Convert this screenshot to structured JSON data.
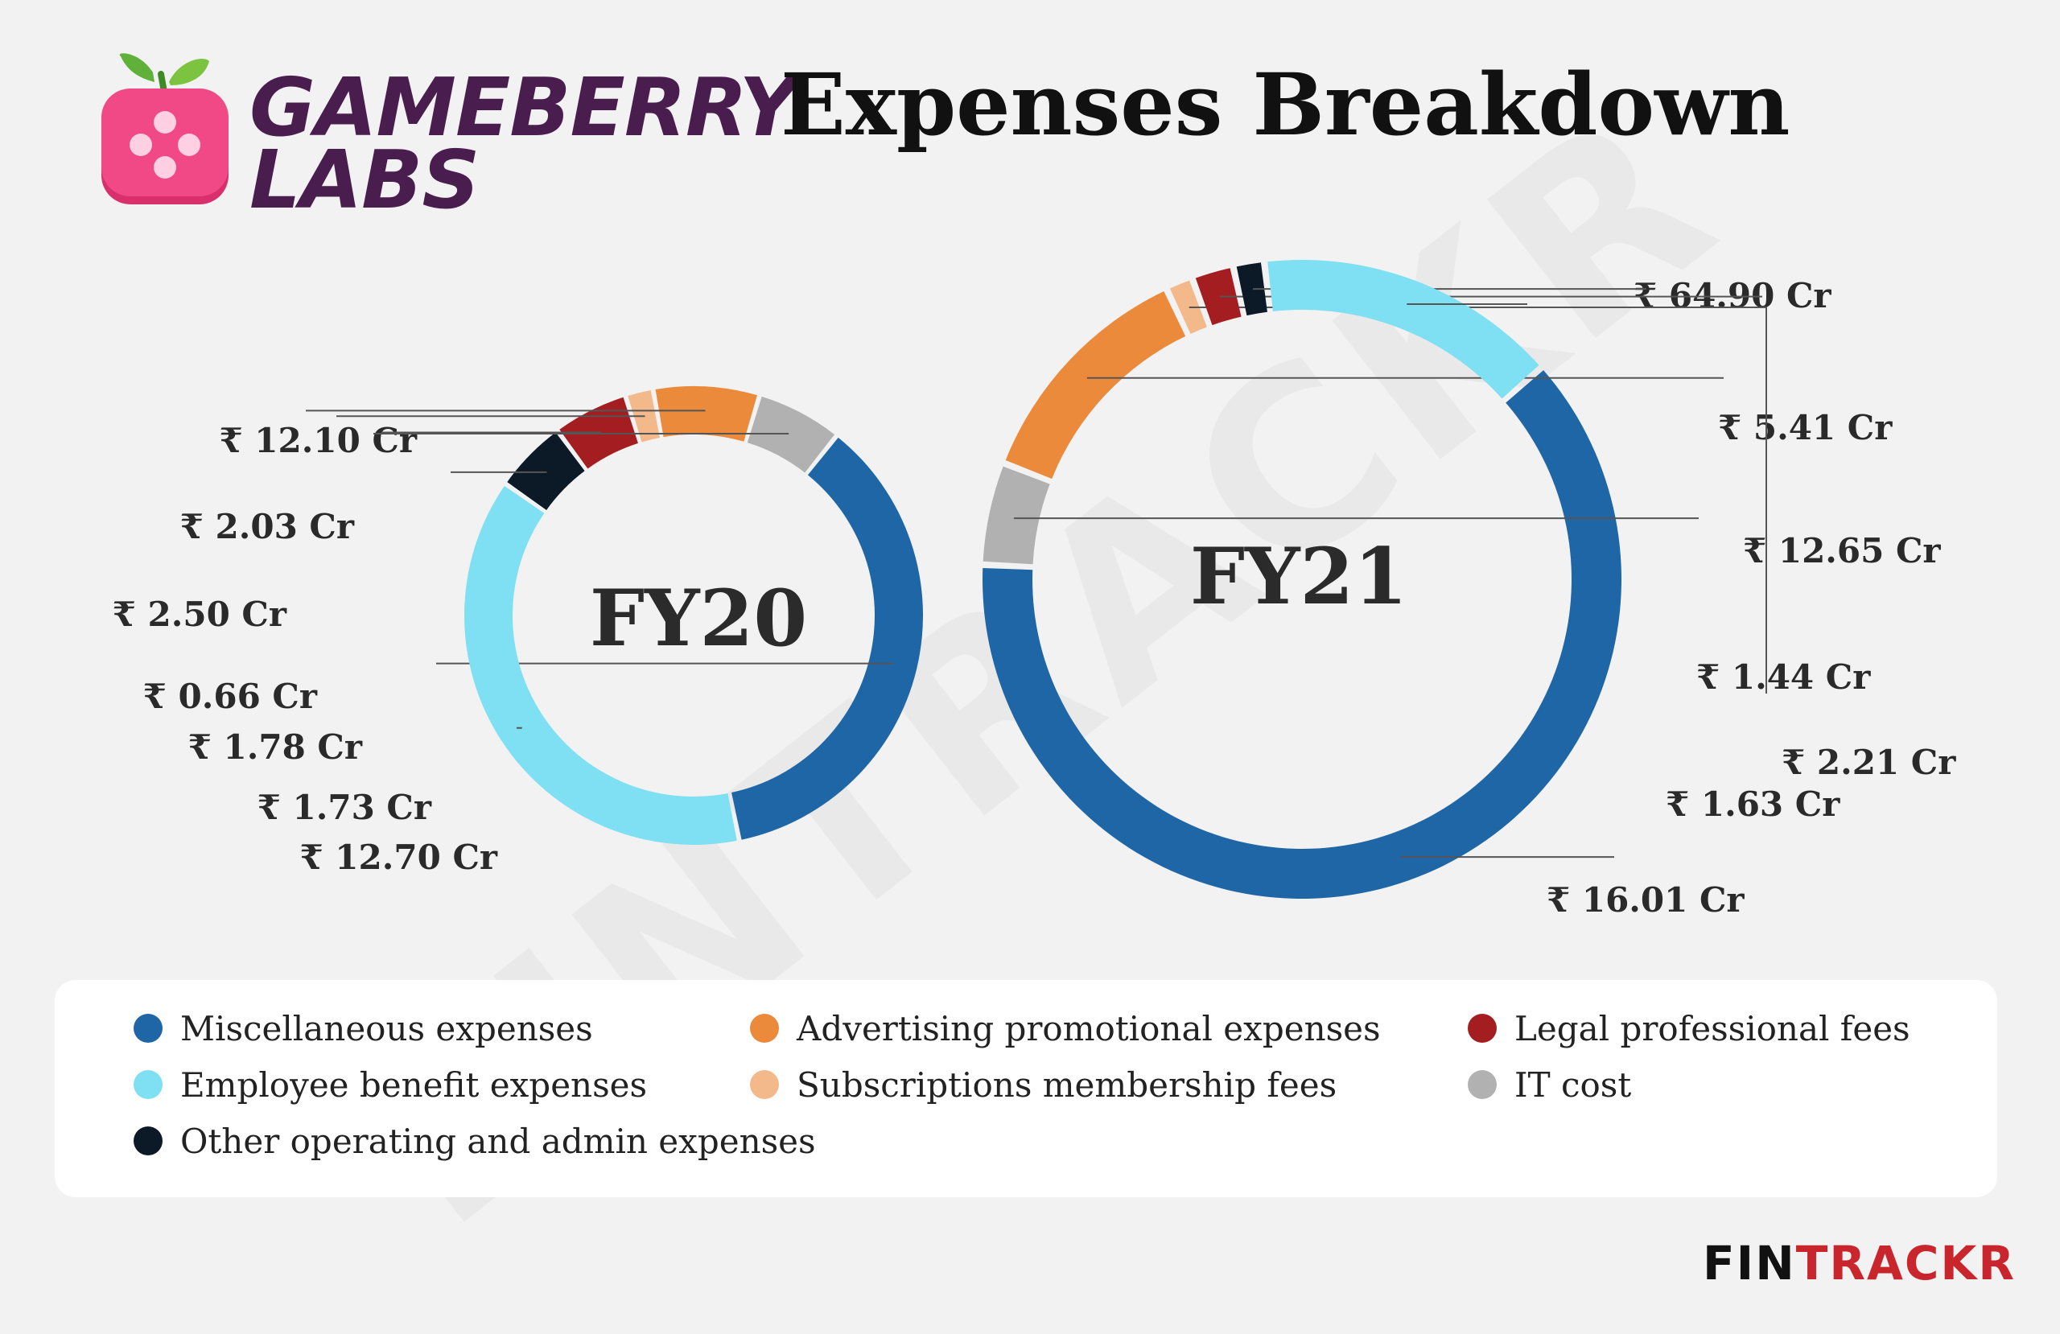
{
  "watermark": "FINTRACKR",
  "logo": {
    "line1": "GAMEBERRY",
    "line2": "LABS"
  },
  "title": "Expenses Breakdown",
  "brand": {
    "part1": "FIN",
    "part2": "TRACKR"
  },
  "colors": {
    "misc": "#1f66a6",
    "employee": "#7ee0f2",
    "other": "#0c1a28",
    "advertising": "#ec8a3c",
    "subscriptions": "#f4b98a",
    "legal": "#a41d21",
    "it": "#b1b1b1"
  },
  "legend": [
    {
      "key": "misc",
      "label": "Miscellaneous expenses",
      "color": "#1f66a6"
    },
    {
      "key": "advertising",
      "label": "Advertising promotional expenses",
      "color": "#ec8a3c"
    },
    {
      "key": "legal",
      "label": "Legal professional fees",
      "color": "#a41d21"
    },
    {
      "key": "employee",
      "label": "Employee benefit expenses",
      "color": "#7ee0f2"
    },
    {
      "key": "subscriptions",
      "label": "Subscriptions membership fees",
      "color": "#f4b98a"
    },
    {
      "key": "it",
      "label": "IT cost",
      "color": "#b1b1b1"
    },
    {
      "key": "other",
      "label": "Other operating and admin expenses",
      "color": "#0c1a28"
    }
  ],
  "chart_data": [
    {
      "type": "pie",
      "variant": "donut",
      "title": "FY20",
      "unit": "₹ Cr",
      "categories": [
        "Miscellaneous expenses",
        "Employee benefit expenses",
        "Other operating and admin expenses",
        "Legal professional fees",
        "Subscriptions membership fees",
        "Advertising promotional expenses",
        "IT cost"
      ],
      "keys": [
        "misc",
        "employee",
        "other",
        "legal",
        "subscriptions",
        "advertising",
        "it"
      ],
      "values": [
        12.1,
        12.7,
        1.73,
        1.78,
        0.66,
        2.5,
        2.03
      ],
      "labels": [
        "₹ 12.10 Cr",
        "₹ 12.70 Cr",
        "₹ 1.73 Cr",
        "₹ 1.78 Cr",
        "₹ 0.66 Cr",
        "₹ 2.50 Cr",
        "₹ 2.03 Cr"
      ]
    },
    {
      "type": "pie",
      "variant": "donut",
      "title": "FY21",
      "unit": "₹ Cr",
      "categories": [
        "Miscellaneous expenses",
        "IT cost",
        "Advertising promotional expenses",
        "Subscriptions membership fees",
        "Legal professional fees",
        "Other operating and admin expenses",
        "Employee benefit expenses"
      ],
      "keys": [
        "misc",
        "it",
        "advertising",
        "subscriptions",
        "legal",
        "other",
        "employee"
      ],
      "values": [
        64.9,
        5.41,
        12.65,
        1.44,
        2.21,
        1.63,
        16.01
      ],
      "labels": [
        "₹ 64.90 Cr",
        "₹ 5.41 Cr",
        "₹ 12.65 Cr",
        "₹ 1.44 Cr",
        "₹ 2.21 Cr",
        "₹ 1.63 Cr",
        "₹ 16.01 Cr"
      ]
    }
  ]
}
